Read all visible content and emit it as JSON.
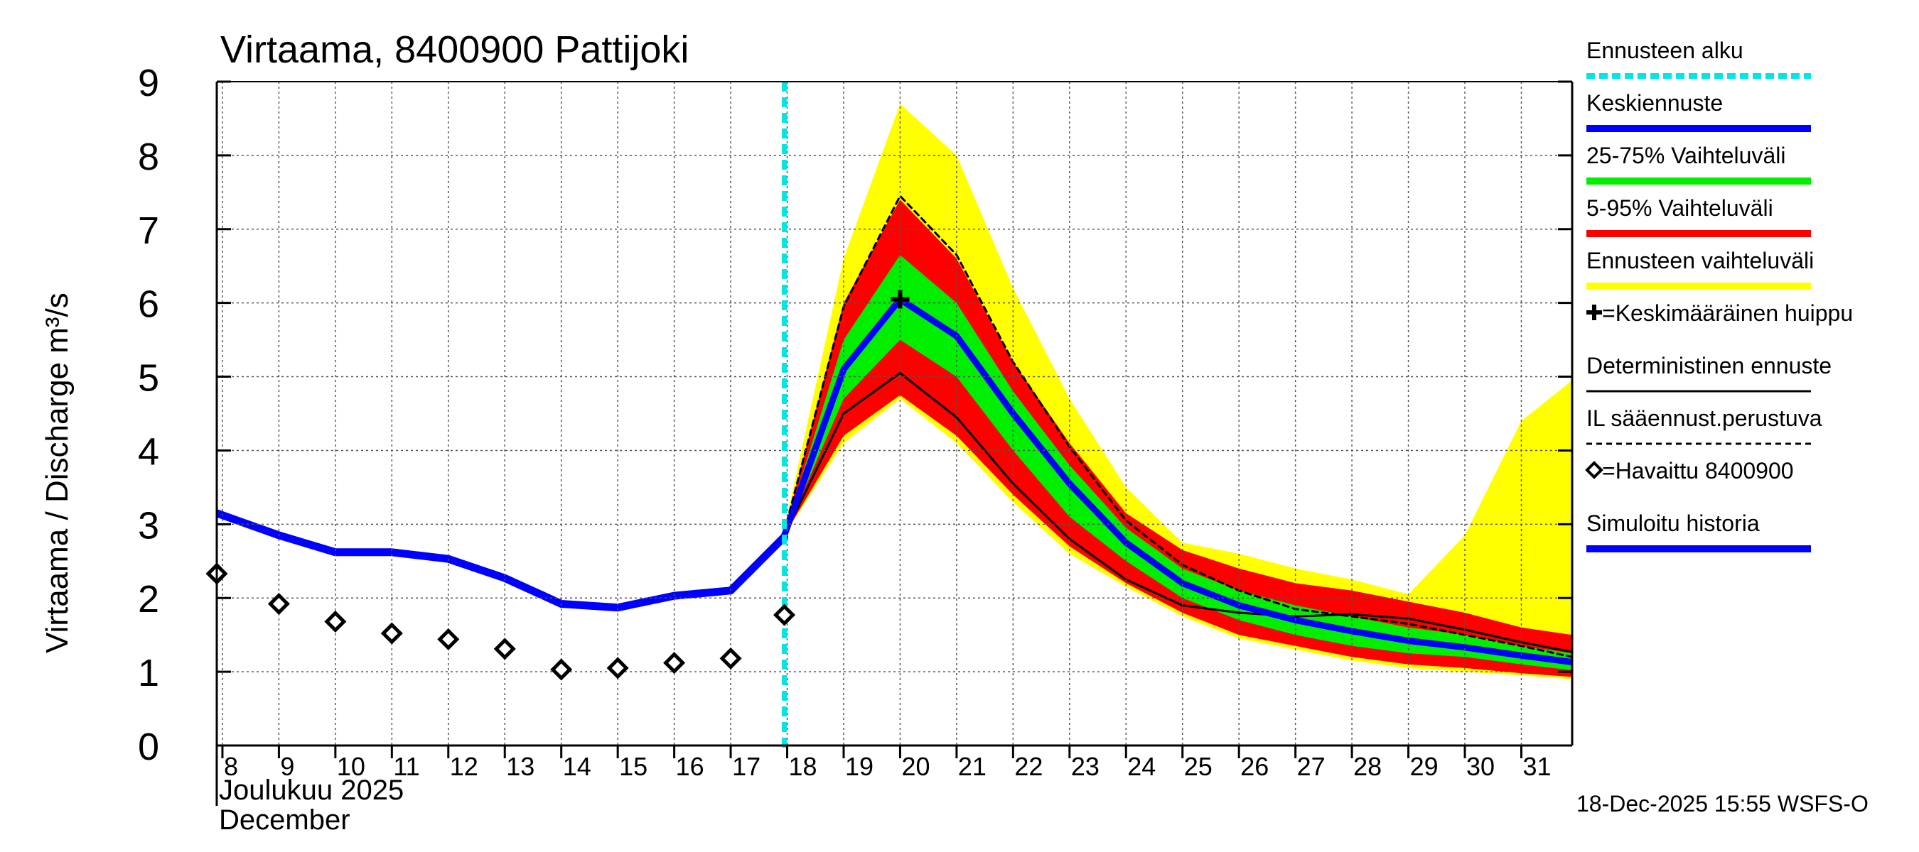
{
  "chart_data": {
    "type": "line",
    "title": "Virtaama, 8400900 Pattijoki",
    "ylabel": "Virtaama / Discharge    m³/s",
    "ylim": [
      0,
      9
    ],
    "yticks": [
      0,
      1,
      2,
      3,
      4,
      5,
      6,
      7,
      8,
      9
    ],
    "xlim": [
      7.9,
      31.9
    ],
    "xticks": [
      8,
      9,
      10,
      11,
      12,
      13,
      14,
      15,
      16,
      17,
      18,
      19,
      20,
      21,
      22,
      23,
      24,
      25,
      26,
      27,
      28,
      29,
      30,
      31
    ],
    "xtick_labels": [
      "8",
      "9",
      "10",
      "11",
      "12",
      "13",
      "14",
      "15",
      "16",
      "17",
      "18",
      "19",
      "20",
      "21",
      "22",
      "23",
      "24",
      "25",
      "26",
      "27",
      "28",
      "29",
      "30",
      "31"
    ],
    "month_label_fi": "Joulukuu  2025",
    "month_label_en": "December",
    "timestamp": "18-Dec-2025 15:55 WSFS-O",
    "forecast_start": 17.95,
    "colors": {
      "full_range": "#ffff00",
      "range_5_95": "#ff0000",
      "range_25_75": "#00ee00",
      "mean": "#0000ff",
      "forecast_start": "#00e5e5",
      "deterministic": "#000000"
    },
    "full_range": {
      "x": [
        17.95,
        19,
        20,
        21,
        22,
        23,
        24,
        25,
        26,
        27,
        28,
        29,
        30,
        31,
        31.9
      ],
      "upper": [
        2.95,
        6.6,
        8.7,
        8.0,
        6.2,
        4.7,
        3.5,
        2.75,
        2.6,
        2.4,
        2.25,
        2.05,
        2.85,
        4.4,
        4.95
      ],
      "lower": [
        2.85,
        4.1,
        4.7,
        4.1,
        3.3,
        2.6,
        2.15,
        1.75,
        1.45,
        1.3,
        1.15,
        1.05,
        1.0,
        0.95,
        0.9
      ]
    },
    "range_5_95": {
      "x": [
        17.95,
        19,
        20,
        21,
        22,
        23,
        24,
        25,
        26,
        27,
        28,
        29,
        30,
        31,
        31.9
      ],
      "upper": [
        2.9,
        6.0,
        7.4,
        6.6,
        5.2,
        4.1,
        3.15,
        2.65,
        2.4,
        2.2,
        2.1,
        1.95,
        1.8,
        1.6,
        1.5
      ],
      "lower": [
        2.85,
        4.2,
        4.75,
        4.2,
        3.4,
        2.7,
        2.2,
        1.8,
        1.5,
        1.35,
        1.2,
        1.1,
        1.05,
        0.98,
        0.93
      ]
    },
    "range_25_75": {
      "x": [
        17.95,
        19,
        20,
        21,
        22,
        23,
        24,
        25,
        26,
        27,
        28,
        29,
        30,
        31,
        31.9
      ],
      "upper": [
        2.88,
        5.5,
        6.65,
        6.0,
        4.8,
        3.8,
        2.95,
        2.4,
        2.1,
        1.9,
        1.75,
        1.6,
        1.5,
        1.35,
        1.25
      ],
      "lower": [
        2.85,
        4.7,
        5.5,
        5.0,
        4.0,
        3.1,
        2.5,
        2.0,
        1.7,
        1.5,
        1.35,
        1.25,
        1.2,
        1.1,
        1.02
      ]
    },
    "series": [
      {
        "name": "Simuloitu historia",
        "x": [
          7.9,
          9,
          10,
          11,
          12,
          13,
          14,
          15,
          16,
          17,
          17.95
        ],
        "values": [
          3.15,
          2.85,
          2.62,
          2.62,
          2.53,
          2.27,
          1.92,
          1.87,
          2.03,
          2.1,
          2.83
        ]
      },
      {
        "name": "Keskiennuste",
        "x": [
          17.95,
          19,
          20,
          21,
          22,
          23,
          24,
          25,
          26,
          27,
          28,
          29,
          30,
          31,
          31.9
        ],
        "values": [
          2.85,
          5.1,
          6.05,
          5.55,
          4.5,
          3.55,
          2.75,
          2.2,
          1.9,
          1.7,
          1.55,
          1.42,
          1.33,
          1.22,
          1.13
        ]
      },
      {
        "name": "Deterministinen ennuste",
        "x": [
          17.95,
          19,
          20,
          21,
          22,
          23,
          24,
          25,
          26,
          27,
          28,
          29,
          30,
          31,
          31.9
        ],
        "values": [
          2.85,
          4.5,
          5.05,
          4.45,
          3.55,
          2.8,
          2.25,
          1.9,
          1.8,
          1.75,
          1.78,
          1.72,
          1.57,
          1.4,
          1.27
        ]
      },
      {
        "name": "IL sääennust.perustuva",
        "x": [
          17.95,
          19,
          20,
          21,
          22,
          23,
          24,
          25,
          26,
          27,
          28,
          29,
          30,
          31,
          31.9
        ],
        "values": [
          2.9,
          5.95,
          7.45,
          6.65,
          5.2,
          4.05,
          3.05,
          2.45,
          2.1,
          1.85,
          1.75,
          1.65,
          1.5,
          1.35,
          1.2
        ]
      }
    ],
    "observed": {
      "name": "Havaittu 8400900",
      "x": [
        7.9,
        9,
        10,
        11,
        12,
        13,
        14,
        15,
        16,
        17,
        17.95
      ],
      "values": [
        2.33,
        1.92,
        1.68,
        1.52,
        1.44,
        1.31,
        1.03,
        1.05,
        1.12,
        1.18,
        1.77
      ]
    },
    "peak": {
      "x": 20,
      "value": 6.05
    },
    "legend": [
      {
        "label": "Ennusteen alku",
        "style": "dotted-cyan"
      },
      {
        "label": "Keskiennuste",
        "style": "blue"
      },
      {
        "label": "25-75% Vaihteluväli",
        "style": "green"
      },
      {
        "label": "5-95% Vaihteluväli",
        "style": "red"
      },
      {
        "label": "Ennusteen vaihteluväli",
        "style": "yellow"
      },
      {
        "label": "=Keskimääräinen huippu",
        "style": "plus"
      },
      {
        "label": "Deterministinen ennuste",
        "style": "black"
      },
      {
        "label": "IL sääennust.perustuva",
        "style": "dashed"
      },
      {
        "label": "=Havaittu 8400900",
        "style": "diamond"
      },
      {
        "label": "Simuloitu historia",
        "style": "blue"
      }
    ]
  }
}
